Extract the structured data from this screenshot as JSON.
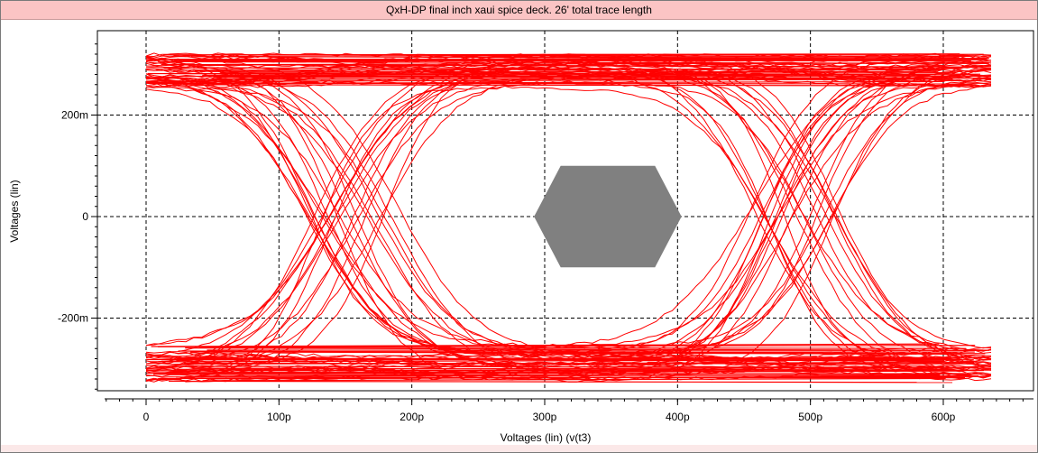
{
  "window": {
    "title": "QxH-DP final inch xaui spice deck. 26' total trace length"
  },
  "chart_data": {
    "type": "line",
    "subtype": "eye-diagram",
    "title": "QxH-DP final inch xaui spice deck. 26' total trace length",
    "xlabel": "Voltages (lin) (v(t3)",
    "ylabel": "Voltages (lin)",
    "x_unit_scale": 1e-12,
    "xlim": [
      -32,
      670
    ],
    "ylim": [
      -350,
      340
    ],
    "x_ticks": [
      {
        "value": 0,
        "label": "0"
      },
      {
        "value": 100,
        "label": "100p"
      },
      {
        "value": 200,
        "label": "200p"
      },
      {
        "value": 300,
        "label": "300p"
      },
      {
        "value": 400,
        "label": "400p"
      },
      {
        "value": 500,
        "label": "500p"
      },
      {
        "value": 600,
        "label": "600p"
      }
    ],
    "y_ticks": [
      {
        "value": 200,
        "label": "200m"
      },
      {
        "value": 0,
        "label": "0"
      },
      {
        "value": -200,
        "label": "-200m"
      }
    ],
    "grid": true,
    "grid_style": "dashed",
    "trace_color": "#ff0000",
    "mask_color": "#808080",
    "eye_mask": {
      "polygon": [
        [
          292,
          0
        ],
        [
          312,
          100
        ],
        [
          383,
          100
        ],
        [
          403,
          0
        ],
        [
          383,
          -100
        ],
        [
          312,
          -100
        ]
      ]
    },
    "eye": {
      "x_start": 0,
      "x_end": 636,
      "crossings": [
        155,
        490
      ],
      "high_level_mv": [
        255,
        320
      ],
      "low_level_mv": [
        -325,
        -255
      ],
      "trace_count": 70
    }
  }
}
